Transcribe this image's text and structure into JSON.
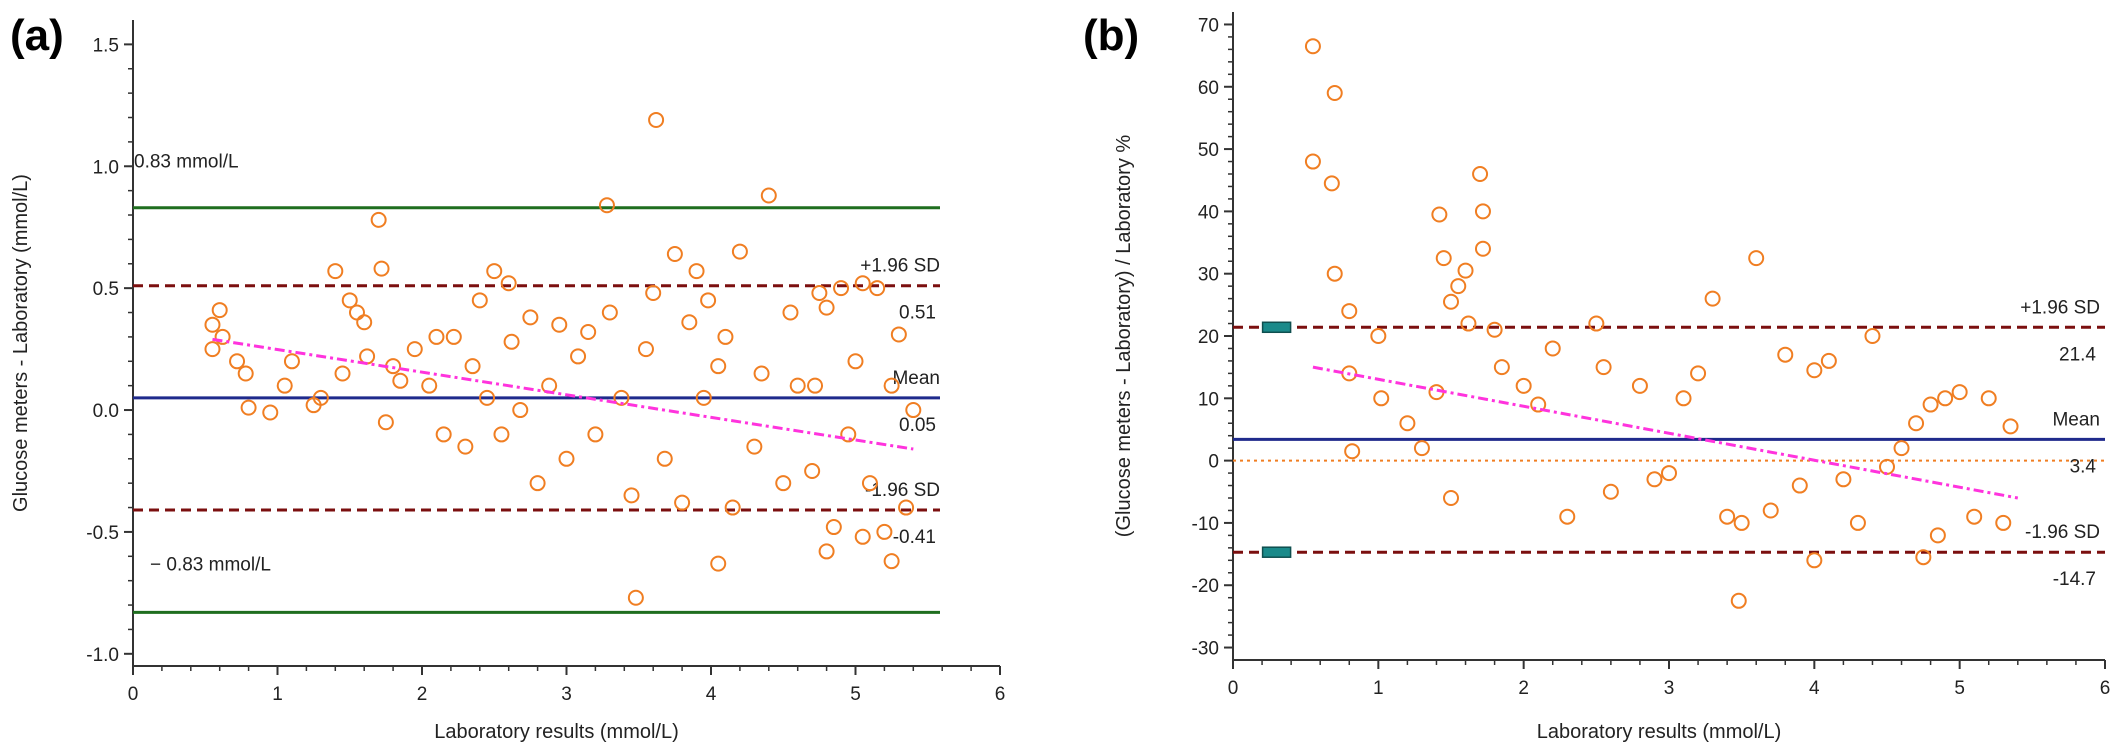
{
  "colors": {
    "points": "#f07e22",
    "mean": "#1f2a8c",
    "sd": "#7b0f0f",
    "limit": "#1f6e1f",
    "trend": "#ff33dd",
    "zero": "#f07e22",
    "axis": "#333333",
    "ci_marker": "#1a8a8a"
  },
  "chart_data": [
    {
      "type": "scatter",
      "panel_label": "(a)",
      "xlabel": "Laboratory results (mmol/L)",
      "ylabel": "Glucose meters - Laboratory  (mmol/L)",
      "xlim": [
        0,
        6
      ],
      "ylim": [
        -1.05,
        1.6
      ],
      "xticks": [
        "0",
        "1",
        "2",
        "3",
        "4",
        "5",
        "6"
      ],
      "yticks": [
        "-1.0",
        "-0.5",
        "0.0",
        "0.5",
        "1.0",
        "1.5"
      ],
      "grid": false,
      "reference_lines": {
        "mean": {
          "value": 0.05,
          "label": "Mean",
          "value_label": "0.05"
        },
        "upper_sd": {
          "value": 0.51,
          "label": "+1.96 SD",
          "value_label": "0.51"
        },
        "lower_sd": {
          "value": -0.41,
          "label": "-1.96 SD",
          "value_label": "-0.41"
        },
        "upper_limit": {
          "value": 0.83,
          "label": "0.83 mmol/L"
        },
        "lower_limit": {
          "value": -0.83,
          "label": "− 0.83 mmol/L"
        }
      },
      "trend_line": {
        "x": [
          0.55,
          5.4
        ],
        "y": [
          0.29,
          -0.16
        ]
      },
      "points": {
        "x": [
          0.55,
          0.6,
          0.72,
          0.8,
          1.05,
          1.25,
          1.4,
          1.5,
          1.6,
          1.7,
          1.72,
          1.85,
          2.1,
          2.35,
          2.5,
          2.6,
          2.75,
          2.95,
          3.15,
          3.28,
          3.62,
          3.75,
          3.85,
          3.9,
          3.98,
          4.05,
          4.2,
          4.4,
          4.6,
          4.75,
          4.8,
          4.9,
          5.05,
          5.15,
          5.3,
          3.48,
          4.05,
          4.8,
          5.05,
          5.25,
          0.55,
          0.62,
          0.78,
          0.95,
          1.1,
          1.3,
          1.45,
          1.55,
          1.62,
          1.75,
          1.8,
          1.95,
          2.05,
          2.15,
          2.22,
          2.3,
          2.4,
          2.45,
          2.55,
          2.62,
          2.68,
          2.8,
          2.88,
          3.0,
          3.08,
          3.2,
          3.3,
          3.38,
          3.45,
          3.55,
          3.6,
          3.68,
          3.8,
          3.95,
          4.1,
          4.15,
          4.3,
          4.35,
          4.5,
          4.55,
          4.7,
          4.72,
          4.85,
          4.95,
          5.0,
          5.1,
          5.2,
          5.25,
          5.35,
          5.4
        ],
        "y": [
          0.25,
          0.41,
          0.2,
          0.01,
          0.1,
          0.02,
          0.57,
          0.45,
          0.36,
          0.78,
          0.58,
          0.12,
          0.3,
          0.18,
          0.57,
          0.52,
          0.38,
          0.35,
          0.32,
          0.84,
          1.19,
          0.64,
          0.36,
          0.57,
          0.45,
          0.18,
          0.65,
          0.88,
          0.1,
          0.48,
          0.42,
          0.5,
          0.52,
          0.5,
          0.31,
          -0.77,
          -0.63,
          -0.58,
          -0.52,
          -0.62,
          0.35,
          0.3,
          0.15,
          -0.01,
          0.2,
          0.05,
          0.15,
          0.4,
          0.22,
          -0.05,
          0.18,
          0.25,
          0.1,
          -0.1,
          0.3,
          -0.15,
          0.45,
          0.05,
          -0.1,
          0.28,
          0.0,
          -0.3,
          0.1,
          -0.2,
          0.22,
          -0.1,
          0.4,
          0.05,
          -0.35,
          0.25,
          0.48,
          -0.2,
          -0.38,
          0.05,
          0.3,
          -0.4,
          -0.15,
          0.15,
          -0.3,
          0.4,
          -0.25,
          0.1,
          -0.48,
          -0.1,
          0.2,
          -0.3,
          -0.5,
          0.1,
          -0.4,
          0.0
        ]
      }
    },
    {
      "type": "scatter",
      "panel_label": "(b)",
      "xlabel": "Laboratory results (mmol/L)",
      "ylabel": "(Glucose meters - Laboratory) / Laboratory %",
      "xlim": [
        0,
        6
      ],
      "ylim": [
        -32,
        72
      ],
      "xticks": [
        "0",
        "1",
        "2",
        "3",
        "4",
        "5",
        "6"
      ],
      "yticks": [
        "-30",
        "-20",
        "-10",
        "0",
        "10",
        "20",
        "30",
        "40",
        "50",
        "60",
        "70"
      ],
      "grid": false,
      "reference_lines": {
        "mean": {
          "value": 3.4,
          "label": "Mean",
          "value_label": "3.4"
        },
        "upper_sd": {
          "value": 21.4,
          "label": "+1.96 SD",
          "value_label": "21.4"
        },
        "lower_sd": {
          "value": -14.7,
          "label": "-1.96 SD",
          "value_label": "-14.7"
        },
        "zero": {
          "value": 0
        }
      },
      "ci_markers": {
        "x": 0.3,
        "y": [
          21.4,
          -14.7
        ]
      },
      "trend_line": {
        "x": [
          0.55,
          5.4
        ],
        "y": [
          15.0,
          -6.0
        ]
      },
      "points": {
        "x": [
          0.55,
          0.55,
          0.7,
          0.68,
          0.7,
          0.8,
          0.8,
          0.82,
          1.0,
          1.02,
          1.4,
          1.42,
          1.45,
          1.5,
          1.55,
          1.6,
          1.62,
          1.7,
          1.72,
          1.72,
          1.8,
          1.85,
          2.0,
          2.1,
          2.2,
          2.5,
          2.55,
          2.8,
          3.1,
          3.2,
          3.3,
          3.6,
          3.8,
          4.0,
          4.1,
          4.4,
          4.7,
          4.8,
          4.9,
          5.0,
          5.2,
          5.35,
          3.48,
          4.0,
          4.75,
          1.2,
          1.3,
          1.5,
          2.3,
          2.6,
          2.9,
          3.0,
          3.4,
          3.5,
          3.7,
          3.9,
          4.2,
          4.3,
          4.5,
          4.6,
          4.85,
          5.1,
          5.3
        ],
        "y": [
          66.5,
          48.0,
          59.0,
          44.5,
          30.0,
          24.0,
          14.0,
          1.5,
          20.0,
          10.0,
          11.0,
          39.5,
          32.5,
          25.5,
          28.0,
          30.5,
          22.0,
          46.0,
          40.0,
          34.0,
          21.0,
          15.0,
          12.0,
          9.0,
          18.0,
          22.0,
          15.0,
          12.0,
          10.0,
          14.0,
          26.0,
          32.5,
          17.0,
          14.5,
          16.0,
          20.0,
          6.0,
          9.0,
          10.0,
          11.0,
          10.0,
          5.5,
          -22.5,
          -16.0,
          -15.5,
          6.0,
          2.0,
          -6.0,
          -9.0,
          -5.0,
          -3.0,
          -2.0,
          -9.0,
          -10.0,
          -8.0,
          -4.0,
          -3.0,
          -10.0,
          -1.0,
          2.0,
          -12.0,
          -9.0,
          -10.0
        ]
      }
    }
  ]
}
